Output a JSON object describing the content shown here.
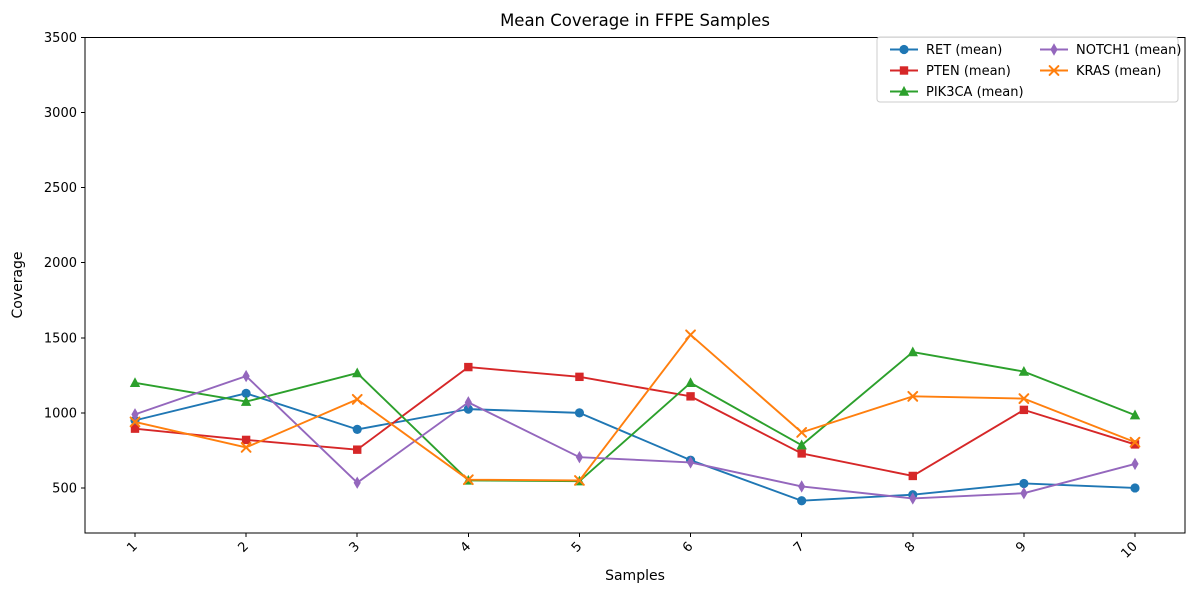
{
  "figure": {
    "background": "#ffffff",
    "spine_color": "#000000",
    "tick_color": "#000000"
  },
  "chart_data": {
    "type": "line",
    "title": "Mean Coverage in FFPE Samples",
    "xlabel": "Samples",
    "ylabel": "Coverage",
    "x": [
      1,
      2,
      3,
      4,
      5,
      6,
      7,
      8,
      9,
      10
    ],
    "x_tick_labels": [
      "1",
      "2",
      "3",
      "4",
      "5",
      "6",
      "7",
      "8",
      "9",
      "10"
    ],
    "x_tick_rotation_deg": 45,
    "y_ticks": [
      500,
      1000,
      1500,
      2000,
      2500,
      3000,
      3500
    ],
    "ylim": [
      200,
      3500
    ],
    "xlim": [
      0.55,
      10.45
    ],
    "grid": false,
    "legend_position": "upper right",
    "legend_columns": 2,
    "legend_border_color": "#cccccc",
    "series": [
      {
        "name": "RET (mean)",
        "color": "#1f77b4",
        "marker": "circle",
        "values": [
          950,
          1130,
          890,
          1025,
          1000,
          685,
          415,
          455,
          530,
          500
        ]
      },
      {
        "name": "PTEN (mean)",
        "color": "#d62728",
        "marker": "square",
        "values": [
          895,
          820,
          755,
          1305,
          1240,
          1110,
          730,
          580,
          1020,
          790
        ]
      },
      {
        "name": "PIK3CA (mean)",
        "color": "#2ca02c",
        "marker": "triangle",
        "values": [
          1200,
          1075,
          1265,
          550,
          545,
          1200,
          785,
          1405,
          1275,
          985
        ]
      },
      {
        "name": "NOTCH1 (mean)",
        "color": "#9467bd",
        "marker": "diamond",
        "values": [
          990,
          1245,
          535,
          1070,
          705,
          670,
          510,
          430,
          465,
          660
        ]
      },
      {
        "name": "KRAS (mean)",
        "color": "#ff7f0e",
        "marker": "x",
        "values": [
          940,
          770,
          1090,
          555,
          550,
          1520,
          870,
          1110,
          1095,
          805
        ]
      }
    ]
  }
}
